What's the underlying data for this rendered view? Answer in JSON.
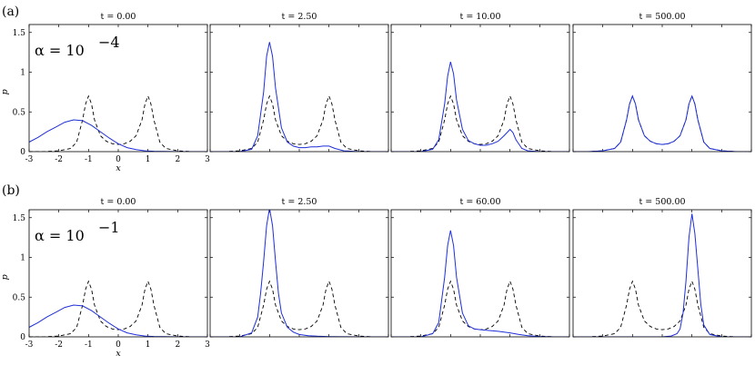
{
  "figure": {
    "colors": {
      "density": "#1f2fd9",
      "target": "#000000"
    },
    "rows": [
      {
        "label": "(a)",
        "alpha_label": "α = 10",
        "alpha_exp": "−4",
        "ylabel": "p",
        "xlabel": "x",
        "panels": [
          {
            "title": "t = 0.00"
          },
          {
            "title": "t = 2.50"
          },
          {
            "title": "t = 10.00"
          },
          {
            "title": "t = 500.00"
          }
        ]
      },
      {
        "label": "(b)",
        "alpha_label": "α = 10",
        "alpha_exp": "−1",
        "ylabel": "p",
        "xlabel": "x",
        "panels": [
          {
            "title": "t = 0.00"
          },
          {
            "title": "t = 2.50"
          },
          {
            "title": "t = 60.00"
          },
          {
            "title": "t = 500.00"
          }
        ]
      }
    ]
  },
  "chart_data": [
    {
      "type": "line",
      "row": "(a)",
      "title": "t = 0.00",
      "xlabel": "x",
      "ylabel": "p",
      "xlim": [
        -3,
        3
      ],
      "ylim": [
        0,
        1.6
      ],
      "xticks": [
        "-3",
        "-2",
        "-1",
        "0",
        "1",
        "2",
        "3"
      ],
      "yticks": [
        "0",
        "0.5",
        "1",
        "1.5"
      ],
      "series": [
        {
          "style": "dashed",
          "x": [
            -3,
            -2.5,
            -2,
            -1.6,
            -1.4,
            -1.2,
            -1.1,
            -1,
            -0.9,
            -0.8,
            -0.6,
            -0.4,
            -0.2,
            0,
            0.2,
            0.4,
            0.6,
            0.8,
            0.9,
            1,
            1.1,
            1.2,
            1.4,
            1.6,
            2,
            2.5,
            3
          ],
          "y": [
            0,
            0,
            0.01,
            0.04,
            0.12,
            0.4,
            0.6,
            0.7,
            0.6,
            0.4,
            0.2,
            0.13,
            0.1,
            0.09,
            0.1,
            0.13,
            0.2,
            0.4,
            0.6,
            0.7,
            0.6,
            0.4,
            0.12,
            0.04,
            0.01,
            0,
            0
          ]
        },
        {
          "style": "solid",
          "x": [
            -3,
            -2.7,
            -2.4,
            -2.1,
            -1.8,
            -1.5,
            -1.2,
            -0.9,
            -0.6,
            -0.3,
            0,
            0.3,
            0.6,
            0.9,
            1.2,
            1.5,
            2,
            2.5,
            3
          ],
          "y": [
            0.12,
            0.18,
            0.25,
            0.31,
            0.37,
            0.4,
            0.39,
            0.33,
            0.25,
            0.17,
            0.1,
            0.05,
            0.025,
            0.01,
            0.005,
            0.002,
            0,
            0,
            0
          ]
        }
      ]
    },
    {
      "type": "line",
      "row": "(a)",
      "title": "t = 2.50",
      "xlim": [
        -3,
        3
      ],
      "ylim": [
        0,
        1.6
      ],
      "series": [
        {
          "style": "dashed",
          "x": [
            -3,
            -2.5,
            -2,
            -1.6,
            -1.4,
            -1.2,
            -1.1,
            -1,
            -0.9,
            -0.8,
            -0.6,
            -0.4,
            -0.2,
            0,
            0.2,
            0.4,
            0.6,
            0.8,
            0.9,
            1,
            1.1,
            1.2,
            1.4,
            1.6,
            2,
            2.5,
            3
          ],
          "y": [
            0,
            0,
            0.01,
            0.04,
            0.12,
            0.4,
            0.6,
            0.7,
            0.6,
            0.4,
            0.2,
            0.13,
            0.1,
            0.09,
            0.1,
            0.13,
            0.2,
            0.4,
            0.6,
            0.7,
            0.6,
            0.4,
            0.12,
            0.04,
            0.01,
            0,
            0
          ]
        },
        {
          "style": "solid",
          "x": [
            -3,
            -2,
            -1.6,
            -1.4,
            -1.2,
            -1.1,
            -1,
            -0.9,
            -0.8,
            -0.6,
            -0.4,
            -0.2,
            0,
            0.2,
            0.4,
            0.6,
            0.8,
            1,
            1.2,
            1.5,
            2,
            3
          ],
          "y": [
            0,
            0,
            0.03,
            0.2,
            0.75,
            1.2,
            1.38,
            1.2,
            0.8,
            0.3,
            0.12,
            0.07,
            0.05,
            0.05,
            0.06,
            0.06,
            0.07,
            0.07,
            0.04,
            0.01,
            0,
            0
          ]
        }
      ]
    },
    {
      "type": "line",
      "row": "(a)",
      "title": "t = 10.00",
      "xlim": [
        -3,
        3
      ],
      "ylim": [
        0,
        1.6
      ],
      "series": [
        {
          "style": "dashed",
          "x": [
            -3,
            -2.5,
            -2,
            -1.6,
            -1.4,
            -1.2,
            -1.1,
            -1,
            -0.9,
            -0.8,
            -0.6,
            -0.4,
            -0.2,
            0,
            0.2,
            0.4,
            0.6,
            0.8,
            0.9,
            1,
            1.1,
            1.2,
            1.4,
            1.6,
            2,
            2.5,
            3
          ],
          "y": [
            0,
            0,
            0.01,
            0.04,
            0.12,
            0.4,
            0.6,
            0.7,
            0.6,
            0.4,
            0.2,
            0.13,
            0.1,
            0.09,
            0.1,
            0.13,
            0.2,
            0.4,
            0.6,
            0.7,
            0.6,
            0.4,
            0.12,
            0.04,
            0.01,
            0,
            0
          ]
        },
        {
          "style": "solid",
          "x": [
            -3,
            -2,
            -1.6,
            -1.4,
            -1.2,
            -1.1,
            -1,
            -0.9,
            -0.8,
            -0.6,
            -0.4,
            -0.2,
            0,
            0.2,
            0.4,
            0.6,
            0.8,
            0.9,
            1,
            1.1,
            1.2,
            1.4,
            1.6,
            2,
            3
          ],
          "y": [
            0,
            0,
            0.03,
            0.15,
            0.6,
            0.95,
            1.13,
            0.98,
            0.65,
            0.28,
            0.14,
            0.1,
            0.08,
            0.08,
            0.1,
            0.13,
            0.2,
            0.24,
            0.28,
            0.24,
            0.15,
            0.04,
            0.01,
            0,
            0
          ]
        }
      ]
    },
    {
      "type": "line",
      "row": "(a)",
      "title": "t = 500.00",
      "xlim": [
        -3,
        3
      ],
      "ylim": [
        0,
        1.6
      ],
      "series": [
        {
          "style": "dashed",
          "x": [
            -3,
            -2.5,
            -2,
            -1.6,
            -1.4,
            -1.2,
            -1.1,
            -1,
            -0.9,
            -0.8,
            -0.6,
            -0.4,
            -0.2,
            0,
            0.2,
            0.4,
            0.6,
            0.8,
            0.9,
            1,
            1.1,
            1.2,
            1.4,
            1.6,
            2,
            2.5,
            3
          ],
          "y": [
            0,
            0,
            0.01,
            0.04,
            0.12,
            0.4,
            0.6,
            0.7,
            0.6,
            0.4,
            0.2,
            0.13,
            0.1,
            0.09,
            0.1,
            0.13,
            0.2,
            0.4,
            0.6,
            0.7,
            0.6,
            0.4,
            0.12,
            0.04,
            0.01,
            0,
            0
          ]
        },
        {
          "style": "solid",
          "x": [
            -3,
            -2.5,
            -2,
            -1.6,
            -1.4,
            -1.2,
            -1.1,
            -1,
            -0.9,
            -0.8,
            -0.6,
            -0.4,
            -0.2,
            0,
            0.2,
            0.4,
            0.6,
            0.8,
            0.9,
            1,
            1.1,
            1.2,
            1.4,
            1.6,
            2,
            2.5,
            3
          ],
          "y": [
            0,
            0,
            0.01,
            0.04,
            0.12,
            0.4,
            0.6,
            0.7,
            0.6,
            0.4,
            0.2,
            0.13,
            0.1,
            0.09,
            0.1,
            0.13,
            0.2,
            0.4,
            0.6,
            0.7,
            0.6,
            0.4,
            0.12,
            0.04,
            0.01,
            0,
            0
          ]
        }
      ]
    },
    {
      "type": "line",
      "row": "(b)",
      "title": "t = 0.00",
      "xlabel": "x",
      "ylabel": "p",
      "xlim": [
        -3,
        3
      ],
      "ylim": [
        0,
        1.6
      ],
      "xticks": [
        "-3",
        "-2",
        "-1",
        "0",
        "1",
        "2",
        "3"
      ],
      "yticks": [
        "0",
        "0.5",
        "1",
        "1.5"
      ],
      "series": [
        {
          "style": "dashed",
          "x": [
            -3,
            -2.5,
            -2,
            -1.6,
            -1.4,
            -1.2,
            -1.1,
            -1,
            -0.9,
            -0.8,
            -0.6,
            -0.4,
            -0.2,
            0,
            0.2,
            0.4,
            0.6,
            0.8,
            0.9,
            1,
            1.1,
            1.2,
            1.4,
            1.6,
            2,
            2.5,
            3
          ],
          "y": [
            0,
            0,
            0.01,
            0.04,
            0.12,
            0.4,
            0.6,
            0.7,
            0.6,
            0.4,
            0.2,
            0.13,
            0.1,
            0.09,
            0.1,
            0.13,
            0.2,
            0.4,
            0.6,
            0.7,
            0.6,
            0.4,
            0.12,
            0.04,
            0.01,
            0,
            0
          ]
        },
        {
          "style": "solid",
          "x": [
            -3,
            -2.7,
            -2.4,
            -2.1,
            -1.8,
            -1.5,
            -1.2,
            -0.9,
            -0.6,
            -0.3,
            0,
            0.3,
            0.6,
            0.9,
            1.2,
            1.5,
            2,
            2.5,
            3
          ],
          "y": [
            0.12,
            0.18,
            0.25,
            0.31,
            0.37,
            0.4,
            0.39,
            0.33,
            0.25,
            0.17,
            0.1,
            0.05,
            0.025,
            0.01,
            0.005,
            0.002,
            0,
            0,
            0
          ]
        }
      ]
    },
    {
      "type": "line",
      "row": "(b)",
      "title": "t = 2.50",
      "xlim": [
        -3,
        3
      ],
      "ylim": [
        0,
        1.6
      ],
      "series": [
        {
          "style": "dashed",
          "x": [
            -3,
            -2.5,
            -2,
            -1.6,
            -1.4,
            -1.2,
            -1.1,
            -1,
            -0.9,
            -0.8,
            -0.6,
            -0.4,
            -0.2,
            0,
            0.2,
            0.4,
            0.6,
            0.8,
            0.9,
            1,
            1.1,
            1.2,
            1.4,
            1.6,
            2,
            2.5,
            3
          ],
          "y": [
            0,
            0,
            0.01,
            0.04,
            0.12,
            0.4,
            0.6,
            0.7,
            0.6,
            0.4,
            0.2,
            0.13,
            0.1,
            0.09,
            0.1,
            0.13,
            0.2,
            0.4,
            0.6,
            0.7,
            0.6,
            0.4,
            0.12,
            0.04,
            0.01,
            0,
            0
          ]
        },
        {
          "style": "solid",
          "x": [
            -3,
            -2,
            -1.6,
            -1.4,
            -1.3,
            -1.2,
            -1.1,
            -1,
            -0.9,
            -0.8,
            -0.7,
            -0.6,
            -0.4,
            -0.2,
            0,
            0.3,
            0.6,
            1,
            1.5,
            2,
            3
          ],
          "y": [
            0,
            0,
            0.05,
            0.25,
            0.55,
            0.95,
            1.4,
            1.62,
            1.4,
            0.95,
            0.55,
            0.3,
            0.12,
            0.06,
            0.03,
            0.015,
            0.008,
            0.003,
            0.001,
            0,
            0
          ]
        }
      ]
    },
    {
      "type": "line",
      "row": "(b)",
      "title": "t = 60.00",
      "xlim": [
        -3,
        3
      ],
      "ylim": [
        0,
        1.6
      ],
      "series": [
        {
          "style": "dashed",
          "x": [
            -3,
            -2.5,
            -2,
            -1.6,
            -1.4,
            -1.2,
            -1.1,
            -1,
            -0.9,
            -0.8,
            -0.6,
            -0.4,
            -0.2,
            0,
            0.2,
            0.4,
            0.6,
            0.8,
            0.9,
            1,
            1.1,
            1.2,
            1.4,
            1.6,
            2,
            2.5,
            3
          ],
          "y": [
            0,
            0,
            0.01,
            0.04,
            0.12,
            0.4,
            0.6,
            0.7,
            0.6,
            0.4,
            0.2,
            0.13,
            0.1,
            0.09,
            0.1,
            0.13,
            0.2,
            0.4,
            0.6,
            0.7,
            0.6,
            0.4,
            0.12,
            0.04,
            0.01,
            0,
            0
          ]
        },
        {
          "style": "solid",
          "x": [
            -3,
            -2,
            -1.6,
            -1.4,
            -1.2,
            -1.1,
            -1,
            -0.9,
            -0.8,
            -0.6,
            -0.4,
            -0.2,
            0,
            0.3,
            0.6,
            1,
            1.3,
            1.6,
            2,
            2.5,
            3
          ],
          "y": [
            0,
            0,
            0.04,
            0.18,
            0.75,
            1.15,
            1.34,
            1.15,
            0.75,
            0.3,
            0.14,
            0.1,
            0.09,
            0.08,
            0.07,
            0.05,
            0.03,
            0.015,
            0.005,
            0,
            0
          ]
        }
      ]
    },
    {
      "type": "line",
      "row": "(b)",
      "title": "t = 500.00",
      "xlim": [
        -3,
        3
      ],
      "ylim": [
        0,
        1.6
      ],
      "series": [
        {
          "style": "dashed",
          "x": [
            -3,
            -2.5,
            -2,
            -1.6,
            -1.4,
            -1.2,
            -1.1,
            -1,
            -0.9,
            -0.8,
            -0.6,
            -0.4,
            -0.2,
            0,
            0.2,
            0.4,
            0.6,
            0.8,
            0.9,
            1,
            1.1,
            1.2,
            1.4,
            1.6,
            2,
            2.5,
            3
          ],
          "y": [
            0,
            0,
            0.01,
            0.04,
            0.12,
            0.4,
            0.6,
            0.7,
            0.6,
            0.4,
            0.2,
            0.13,
            0.1,
            0.09,
            0.1,
            0.13,
            0.2,
            0.4,
            0.6,
            0.7,
            0.6,
            0.4,
            0.12,
            0.04,
            0.01,
            0,
            0
          ]
        },
        {
          "style": "solid",
          "x": [
            -3,
            -1,
            0,
            0.3,
            0.5,
            0.6,
            0.7,
            0.8,
            0.9,
            1,
            1.1,
            1.2,
            1.3,
            1.4,
            1.6,
            2,
            3
          ],
          "y": [
            0,
            0,
            0,
            0.01,
            0.04,
            0.1,
            0.3,
            0.7,
            1.25,
            1.55,
            1.3,
            0.85,
            0.4,
            0.15,
            0.03,
            0,
            0
          ]
        }
      ]
    }
  ]
}
